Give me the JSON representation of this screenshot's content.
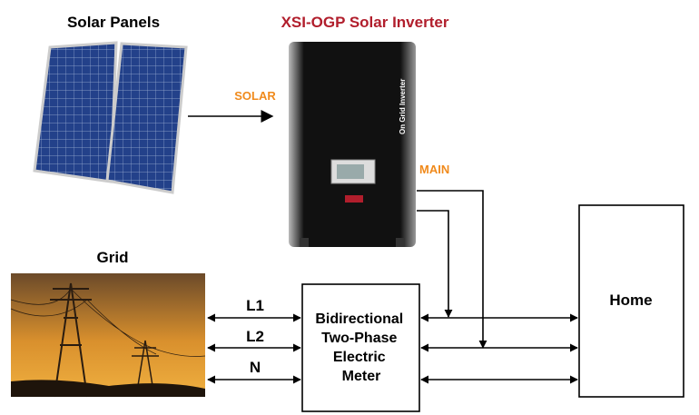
{
  "header": {
    "panels_label": "Solar Panels",
    "inverter_title": "XSI-OGP Solar Inverter"
  },
  "inverter": {
    "side_label": "On Grid Inverter"
  },
  "flows": {
    "solar": "SOLAR",
    "main": "MAIN"
  },
  "grid": {
    "label": "Grid"
  },
  "wires": [
    "L1",
    "L2",
    "N"
  ],
  "meter": {
    "lines": [
      "Bidirectional",
      "Two-Phase",
      "Electric",
      "Meter"
    ]
  },
  "home": {
    "label": "Home"
  }
}
